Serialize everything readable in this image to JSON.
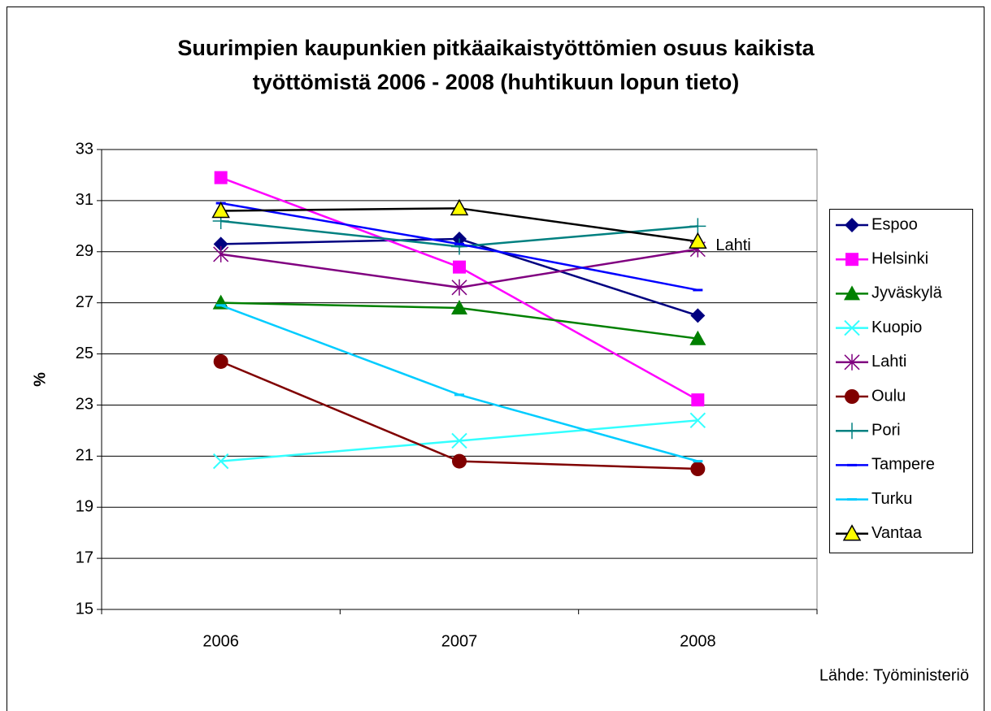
{
  "chart_data": {
    "type": "line",
    "title": [
      "Suurimpien kaupunkien pitkäaikaistyöttömien osuus kaikista",
      "työttömistä 2006 - 2008 (huhtikuun lopun tieto)"
    ],
    "y_label": "%",
    "source": "Lähde: Työministeriö",
    "annotations": [
      {
        "text": "Lahti",
        "series": 4,
        "index": 2
      }
    ],
    "categories": [
      "2006",
      "2007",
      "2008"
    ],
    "ylim": [
      15,
      33
    ],
    "yticks": [
      15,
      17,
      19,
      21,
      23,
      25,
      27,
      29,
      31,
      33
    ],
    "grid": true,
    "legend": "right",
    "series": [
      {
        "name": "Espoo",
        "color": "#000080",
        "marker": "diamond",
        "values": [
          29.3,
          29.5,
          26.5
        ]
      },
      {
        "name": "Helsinki",
        "color": "#ff00ff",
        "marker": "square",
        "values": [
          31.9,
          28.4,
          23.2
        ]
      },
      {
        "name": "Jyväskylä",
        "color": "#008000",
        "marker": "triangle",
        "values": [
          27.0,
          26.8,
          25.6
        ]
      },
      {
        "name": "Kuopio",
        "color": "#33ffff",
        "marker": "x",
        "values": [
          20.8,
          21.6,
          22.4
        ]
      },
      {
        "name": "Lahti",
        "color": "#800080",
        "marker": "asterisk",
        "values": [
          28.9,
          27.6,
          29.1
        ]
      },
      {
        "name": "Oulu",
        "color": "#800000",
        "marker": "circle",
        "values": [
          24.7,
          20.8,
          20.5
        ]
      },
      {
        "name": "Pori",
        "color": "#008080",
        "marker": "plus",
        "values": [
          30.2,
          29.2,
          30.0
        ]
      },
      {
        "name": "Tampere",
        "color": "#0000ff",
        "marker": "dash",
        "values": [
          30.9,
          29.3,
          27.5
        ]
      },
      {
        "name": "Turku",
        "color": "#00ccff",
        "marker": "dash",
        "values": [
          26.9,
          23.4,
          20.8
        ]
      },
      {
        "name": "Vantaa",
        "color": "#000000",
        "marker": "triangle-yellow",
        "values": [
          30.6,
          30.7,
          29.4
        ]
      }
    ]
  }
}
